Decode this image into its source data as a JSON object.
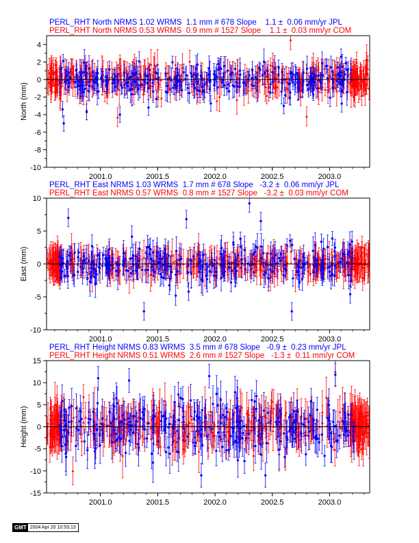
{
  "panels": [
    {
      "header_jpl": "PERL_RHT North NRMS 1.02 WRMS  1.1 mm # 678 Slope    1.1 ±  0.06 mm/yr JPL",
      "header_com": "PERL_RHT North NRMS 0.53 WRMS  0.9 mm # 1527 Slope    1.1 ±  0.03 mm/yr COM"
    },
    {
      "header_jpl": "PERL_RHT East NRMS 1.03 WRMS  1.7 mm # 678 Slope   -3.2 ±  0.06 mm/yr JPL",
      "header_com": "PERL_RHT East NRMS 0.57 WRMS  0.8 mm # 1527 Slope   -3.2 ±  0.03 mm/yr COM"
    },
    {
      "header_jpl": "PERL_RHT Height NRMS 0.83 WRMS  3.5 mm # 678 Slope   -0.9 ±  0.23 mm/yr JPL",
      "header_com": "PERL_RHT Height NRMS 0.51 WRMS  2.6 mm # 1527 Slope   -1.3 ±  0.11 mm/yr COM"
    }
  ],
  "colors": {
    "jpl": "#0000ff",
    "com": "#ff0000",
    "axis": "#000000"
  },
  "footer": {
    "logo": "GMT",
    "timestamp": "2004 Apr 20 10:53:13"
  },
  "chart_data": [
    {
      "type": "scatter",
      "ylabel": "North (mm)",
      "xlim": [
        2000.53,
        2003.35
      ],
      "ylim": [
        -10,
        5
      ],
      "x_ticks": [
        2001.0,
        2001.5,
        2002.0,
        2002.5,
        2003.0
      ],
      "x_tick_labels": [
        "2001.0",
        "2001.5",
        "2002.0",
        "2002.5",
        "2003.0"
      ],
      "y_ticks": [
        -10,
        -8,
        -6,
        -4,
        -2,
        0,
        2,
        4
      ],
      "zero_line": true,
      "series": [
        {
          "name": "JPL",
          "color": "#0000ff",
          "noise_mm": 1.1,
          "errbar_mm": 1.0,
          "slope_mm_per_yr": 1.1,
          "n_points": 678,
          "outliers": [
            [
              2000.68,
              -5.0
            ],
            [
              2000.67,
              -3.4
            ],
            [
              2000.88,
              -3.7
            ],
            [
              2001.17,
              -4.0
            ],
            [
              2001.42,
              -3.2
            ],
            [
              2002.6,
              -3.0
            ],
            [
              2003.1,
              2.6
            ]
          ]
        },
        {
          "name": "COM",
          "color": "#ff0000",
          "noise_mm": 0.9,
          "errbar_mm": 1.2,
          "slope_mm_per_yr": 1.1,
          "n_points": 1527,
          "outliers": [
            [
              2000.88,
              -3.5
            ],
            [
              2001.15,
              -4.3
            ],
            [
              2002.8,
              -4.2
            ],
            [
              2002.66,
              4.5
            ]
          ]
        }
      ]
    },
    {
      "type": "scatter",
      "ylabel": "East (mm)",
      "xlim": [
        2000.53,
        2003.35
      ],
      "ylim": [
        -10,
        10
      ],
      "x_ticks": [
        2001.0,
        2001.5,
        2002.0,
        2002.5,
        2003.0
      ],
      "x_tick_labels": [
        "2001.0",
        "2001.5",
        "2002.0",
        "2002.5",
        "2003.0"
      ],
      "y_ticks": [
        -10,
        -5,
        0,
        5,
        10
      ],
      "zero_line": true,
      "series": [
        {
          "name": "JPL",
          "color": "#0000ff",
          "noise_mm": 1.7,
          "errbar_mm": 1.5,
          "slope_mm_per_yr": -3.2,
          "n_points": 678,
          "outliers": [
            [
              2000.72,
              7.0
            ],
            [
              2001.38,
              -7.2
            ],
            [
              2001.75,
              6.8
            ],
            [
              2002.3,
              9.2
            ],
            [
              2002.4,
              6.5
            ],
            [
              2002.67,
              -7.2
            ],
            [
              2003.18,
              -4.6
            ],
            [
              2001.77,
              -4.2
            ]
          ]
        },
        {
          "name": "COM",
          "color": "#ff0000",
          "noise_mm": 0.8,
          "errbar_mm": 1.8,
          "slope_mm_per_yr": -3.2,
          "n_points": 1527,
          "outliers": []
        }
      ]
    },
    {
      "type": "scatter",
      "ylabel": "Height (mm)",
      "xlim": [
        2000.53,
        2003.35
      ],
      "ylim": [
        -15,
        15
      ],
      "x_ticks": [
        2001.0,
        2001.5,
        2002.0,
        2002.5,
        2003.0
      ],
      "x_tick_labels": [
        "2001.0",
        "2001.5",
        "2002.0",
        "2002.5",
        "2003.0"
      ],
      "y_ticks": [
        -15,
        -10,
        -5,
        0,
        5,
        10,
        15
      ],
      "zero_line": true,
      "series": [
        {
          "name": "JPL",
          "color": "#0000ff",
          "noise_mm": 3.5,
          "errbar_mm": 3.0,
          "slope_mm_per_yr": -0.9,
          "n_points": 678,
          "outliers": [
            [
              2000.98,
              11.0
            ],
            [
              2001.25,
              10.5
            ],
            [
              2001.95,
              11.5
            ],
            [
              2003.05,
              11.8
            ],
            [
              2001.88,
              -11.0
            ],
            [
              2002.44,
              -11.0
            ]
          ]
        },
        {
          "name": "COM",
          "color": "#ff0000",
          "noise_mm": 2.6,
          "errbar_mm": 3.5,
          "slope_mm_per_yr": -1.3,
          "n_points": 1527,
          "outliers": [
            [
              2003.05,
              12.5
            ],
            [
              2000.76,
              -10.0
            ]
          ]
        }
      ]
    }
  ]
}
